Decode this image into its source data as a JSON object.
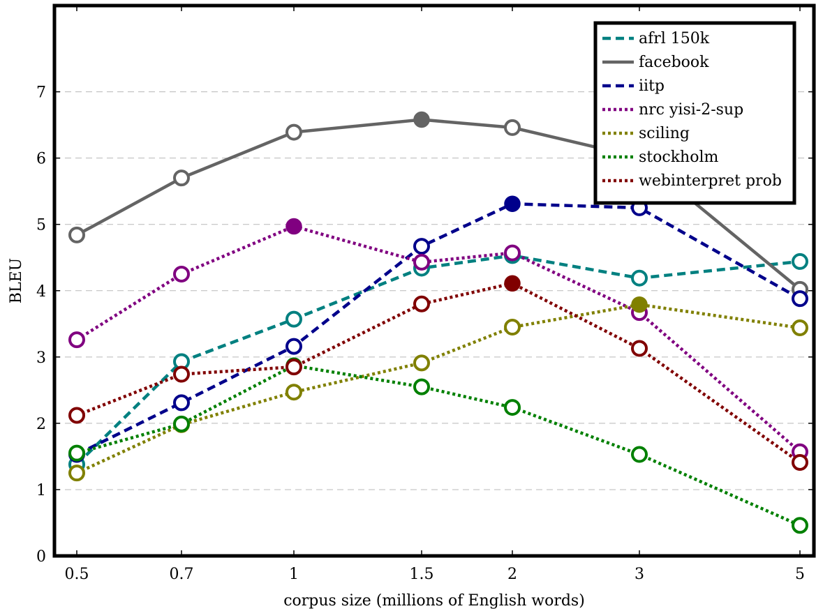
{
  "chart_data": {
    "type": "line",
    "xlabel": "corpus size (millions of English words)",
    "ylabel": "BLEU",
    "x": [
      0.5,
      0.7,
      1,
      1.5,
      2,
      3,
      5
    ],
    "x_tick_labels": [
      "0.5",
      "0.7",
      "1",
      "1.5",
      "2",
      "3",
      "5"
    ],
    "x_scale": "log",
    "y_ticks": [
      0,
      1,
      2,
      3,
      4,
      5,
      6,
      7
    ],
    "ylim": [
      0,
      8.3
    ],
    "grid": "horizontal dashed",
    "legend_position": "top-right",
    "series": [
      {
        "name": "afrl 150k",
        "color": "#008080",
        "style": "dashed",
        "values": [
          1.38,
          2.93,
          3.57,
          4.34,
          4.53,
          4.19,
          4.44
        ],
        "best_index": null
      },
      {
        "name": "facebook",
        "color": "#646464",
        "style": "solid",
        "values": [
          4.84,
          5.7,
          6.39,
          6.58,
          6.46,
          6.01,
          4.02
        ],
        "best_index": 3
      },
      {
        "name": "iitp",
        "color": "#00008b",
        "style": "dashed",
        "values": [
          1.53,
          2.31,
          3.16,
          4.67,
          5.31,
          5.25,
          3.88
        ],
        "best_index": 4
      },
      {
        "name": "nrc yisi-2-sup",
        "color": "#800080",
        "style": "dotted",
        "values": [
          3.26,
          4.25,
          4.97,
          4.43,
          4.57,
          3.67,
          1.57
        ],
        "best_index": 2
      },
      {
        "name": "sciling",
        "color": "#808000",
        "style": "dotted",
        "values": [
          1.25,
          1.98,
          2.47,
          2.91,
          3.45,
          3.79,
          3.44
        ],
        "best_index": 5
      },
      {
        "name": "stockholm",
        "color": "#008000",
        "style": "dotted",
        "values": [
          1.55,
          1.99,
          2.87,
          2.55,
          2.24,
          1.53,
          0.46
        ],
        "best_index": 2
      },
      {
        "name": "webinterpret prob",
        "color": "#800000",
        "style": "dotted",
        "values": [
          2.12,
          2.74,
          2.85,
          3.8,
          4.11,
          3.13,
          1.41
        ],
        "best_index": 4
      }
    ]
  }
}
